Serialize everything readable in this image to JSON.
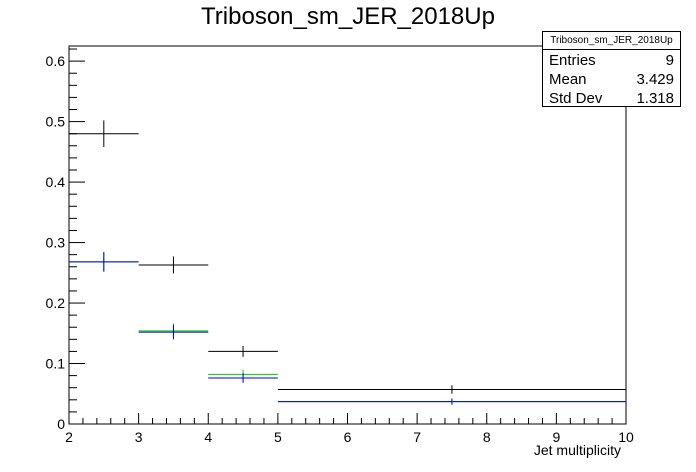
{
  "chart_data": {
    "type": "scatter",
    "title": "Triboson_sm_JER_2018Up",
    "xlabel": "Jet multiplicity",
    "ylabel": "",
    "xlim": [
      2,
      10
    ],
    "ylim": [
      0,
      0.625
    ],
    "x_ticks": [
      "2",
      "3",
      "4",
      "5",
      "6",
      "7",
      "8",
      "9",
      "10"
    ],
    "y_ticks": [
      "0",
      "0.1",
      "0.2",
      "0.3",
      "0.4",
      "0.5",
      "0.6"
    ],
    "grid": false,
    "bins": [
      [
        2,
        3
      ],
      [
        3,
        4
      ],
      [
        4,
        5
      ],
      [
        5,
        10
      ]
    ],
    "series": [
      {
        "color": "#000000",
        "values": [
          0.48,
          0.263,
          0.12,
          0.057
        ],
        "errors": [
          0.022,
          0.014,
          0.009,
          0.007
        ]
      },
      {
        "color": "#00cc00",
        "values": [
          0.268,
          0.154,
          0.082,
          0.037
        ],
        "errors": [
          0.016,
          0.012,
          0.008,
          0.005
        ]
      },
      {
        "color": "#0000cc",
        "values": [
          0.268,
          0.152,
          0.076,
          0.037
        ],
        "errors": [
          0.016,
          0.012,
          0.008,
          0.005
        ]
      }
    ]
  },
  "stats": {
    "title": "Triboson_sm_JER_2018Up",
    "entries_label": "Entries",
    "entries_value": "9",
    "mean_label": "Mean",
    "mean_value": "3.429",
    "stddev_label": "Std Dev",
    "stddev_value": "1.318"
  }
}
